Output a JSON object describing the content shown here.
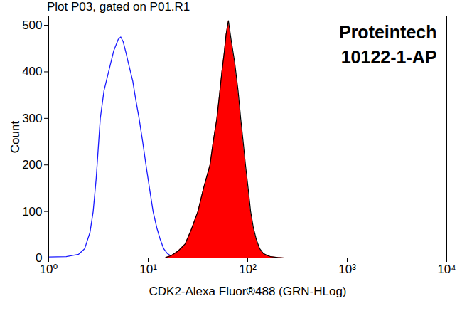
{
  "chart_data": {
    "type": "line",
    "title": "Plot P03, gated on P01.R1",
    "annotations": [
      "Proteintech",
      "10122-1-AP"
    ],
    "x_label": "CDK2-Alexa Fluor®488 (GRN-HLog)",
    "y_label": "Count",
    "log": "x",
    "xlim": [
      1,
      10000
    ],
    "xticks": [
      {
        "value": 1,
        "label": "10⁰"
      },
      {
        "value": 10,
        "label": "10¹"
      },
      {
        "value": 100,
        "label": "10²"
      },
      {
        "value": 1000,
        "label": "10³"
      },
      {
        "value": 10000,
        "label": "10⁴"
      }
    ],
    "ylim": [
      0,
      520
    ],
    "yticks": [
      0,
      100,
      200,
      300,
      400,
      500
    ],
    "series": [
      {
        "type": "line",
        "color": "#1a1aff",
        "x": [
          1.0,
          1.5,
          2.0,
          2.3,
          2.6,
          2.8,
          3.0,
          3.3,
          3.6,
          4.0,
          4.5,
          5.0,
          5.3,
          5.6,
          6.0,
          6.3,
          7.0,
          7.5,
          8.1,
          8.8,
          9.5,
          10.3,
          11.2,
          12.2,
          13.2,
          14.3,
          15.5,
          17.0,
          20.0,
          30.0
        ],
        "values": [
          2,
          3,
          8,
          20,
          55,
          100,
          170,
          300,
          360,
          400,
          445,
          470,
          475,
          465,
          440,
          420,
          380,
          340,
          300,
          250,
          200,
          150,
          100,
          65,
          40,
          20,
          10,
          4,
          1,
          0
        ]
      },
      {
        "type": "area",
        "color": "#ff0000",
        "x": [
          15.0,
          17.0,
          20.0,
          23.5,
          27.0,
          31.6,
          36.0,
          41.8,
          45.0,
          49.0,
          52.0,
          55.0,
          58.0,
          60.6,
          64.0,
          68.0,
          74.0,
          80.0,
          85.0,
          90.0,
          95.0,
          101.0,
          107.0,
          114.0,
          122.0,
          132.0,
          143.0,
          155.0,
          169.0,
          200.0,
          235.0
        ],
        "values": [
          1,
          5,
          15,
          30,
          60,
          100,
          150,
          200,
          250,
          300,
          350,
          400,
          440,
          480,
          510,
          470,
          420,
          360,
          300,
          250,
          200,
          150,
          100,
          65,
          40,
          20,
          10,
          6,
          3,
          1,
          0
        ]
      }
    ]
  }
}
